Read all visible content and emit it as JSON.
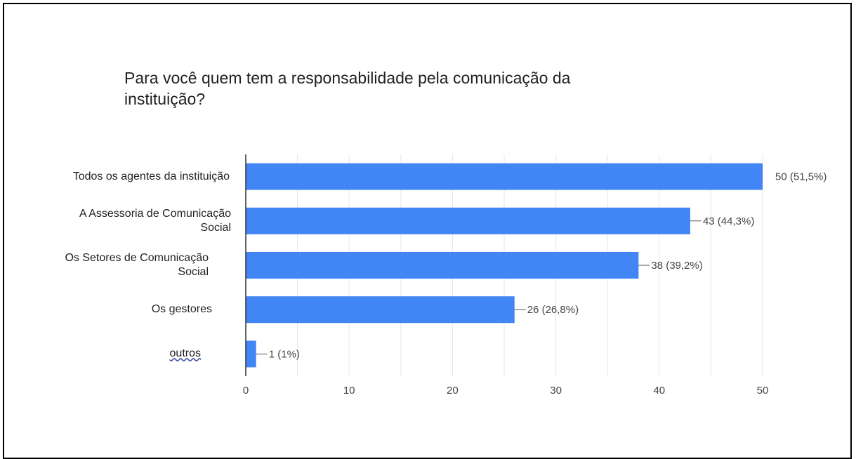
{
  "chart_data": {
    "type": "bar",
    "orientation": "horizontal",
    "title": "Para você quem tem a responsabilidade pela comunicação da instituição?",
    "categories": [
      [
        "Todos os agentes da instituição"
      ],
      [
        "A Assessoria de Comunicação",
        "Social"
      ],
      [
        "Os Setores de Comunicação",
        "Social"
      ],
      [
        "Os gestores"
      ],
      [
        "outros"
      ]
    ],
    "values": [
      50,
      43,
      38,
      26,
      1
    ],
    "data_labels": [
      "50 (51,5%)",
      "43 (44,3%)",
      "38 (39,2%)",
      "26 (26,8%)",
      "1 (1%)"
    ],
    "xlim": [
      0,
      50
    ],
    "xticks": [
      0,
      10,
      20,
      30,
      40,
      50
    ],
    "xtick_labels": [
      "0",
      "10",
      "20",
      "30",
      "40",
      "50"
    ],
    "grid": true,
    "bar_color": "#4285f4",
    "grid_color": "#e6e6e6",
    "axis_color": "#333333",
    "label_color": "#444444"
  }
}
